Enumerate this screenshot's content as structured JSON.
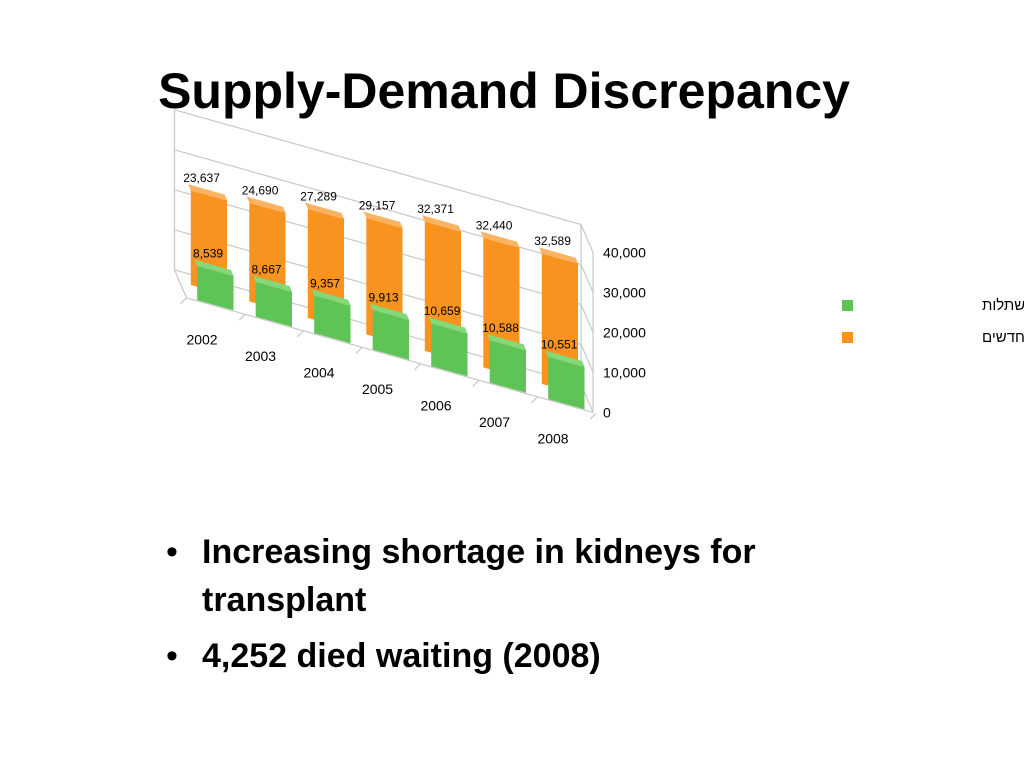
{
  "slide": {
    "title": "Supply-Demand Discrepancy",
    "bullets": [
      "Increasing shortage in kidneys for transplant",
      "4,252 died waiting (2008)"
    ]
  },
  "colors": {
    "transplants_front": "#5ec455",
    "transplants_side": "#3f9638",
    "transplants_top": "#83d97a",
    "waitlist_front": "#f7931e",
    "waitlist_side": "#c7700f",
    "waitlist_top": "#fbb261",
    "grid": "#c8c8c8"
  },
  "chart_data": {
    "type": "bar",
    "categories": [
      "2002",
      "2003",
      "2004",
      "2005",
      "2006",
      "2007",
      "2008"
    ],
    "series": [
      {
        "name": "השתלות",
        "values": [
          8539,
          8667,
          9357,
          9913,
          10659,
          10588,
          10551
        ],
        "labels": [
          "8,539",
          "8,667",
          "9,357",
          "9,913",
          "10,659",
          "10,588",
          "10,551"
        ]
      },
      {
        "name": "מועמדים חדשים",
        "values": [
          23637,
          24690,
          27289,
          29157,
          32371,
          32440,
          32589
        ],
        "labels": [
          "23,637",
          "24,690",
          "27,289",
          "29,157",
          "32,371",
          "32,440",
          "32,589"
        ]
      }
    ],
    "y_ticks": [
      "0",
      "10,000",
      "20,000",
      "30,000",
      "40,000"
    ],
    "ylim": [
      0,
      40000
    ],
    "grid": true,
    "legend_position": "right",
    "three_d": true
  }
}
